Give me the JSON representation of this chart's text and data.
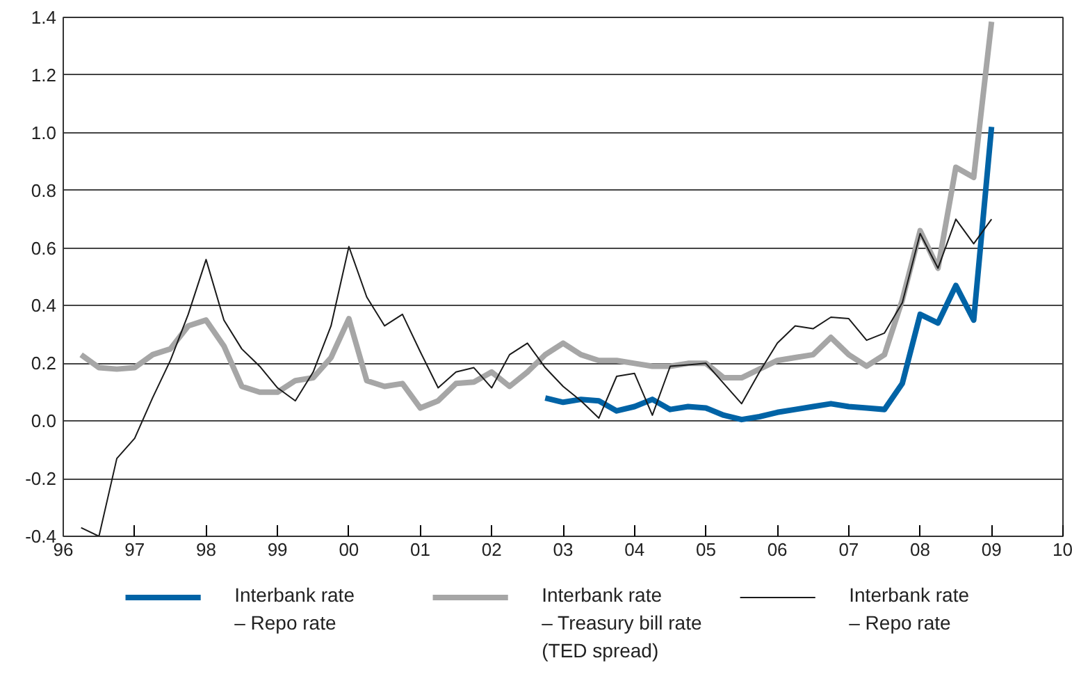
{
  "chart_data": {
    "type": "line",
    "legend": "bottom",
    "grid": "y",
    "line_style": "solid",
    "xlim": [
      1996,
      2010
    ],
    "xticks": [
      {
        "value": 1996,
        "label": "96"
      },
      {
        "value": 1997,
        "label": "97"
      },
      {
        "value": 1998,
        "label": "98"
      },
      {
        "value": 1999,
        "label": "99"
      },
      {
        "value": 2000,
        "label": "00"
      },
      {
        "value": 2001,
        "label": "01"
      },
      {
        "value": 2002,
        "label": "02"
      },
      {
        "value": 2003,
        "label": "03"
      },
      {
        "value": 2004,
        "label": "04"
      },
      {
        "value": 2005,
        "label": "05"
      },
      {
        "value": 2006,
        "label": "06"
      },
      {
        "value": 2007,
        "label": "07"
      },
      {
        "value": 2008,
        "label": "08"
      },
      {
        "value": 2009,
        "label": "09"
      },
      {
        "value": 2010,
        "label": "10"
      }
    ],
    "ylim": [
      -0.4,
      1.4
    ],
    "yticks": [
      {
        "value": -0.4,
        "label": "-0.4"
      },
      {
        "value": -0.2,
        "label": "-0.2"
      },
      {
        "value": 0,
        "label": "0.0"
      },
      {
        "value": 0.2,
        "label": "0.2"
      },
      {
        "value": 0.4,
        "label": "0.4"
      },
      {
        "value": 0.6,
        "label": "0.6"
      },
      {
        "value": 0.8,
        "label": "0.8"
      },
      {
        "value": 1,
        "label": "1.0"
      },
      {
        "value": 1.2,
        "label": "1.2"
      },
      {
        "value": 1.4,
        "label": "1.4"
      }
    ],
    "series": [
      {
        "name": "Interbank rate\n– Repo rate",
        "color": "#0063a6",
        "x": [
          2002.75,
          2003,
          2003.25,
          2003.5,
          2003.75,
          2004,
          2004.25,
          2004.5,
          2004.75,
          2005,
          2005.25,
          2005.5,
          2005.75,
          2006,
          2006.25,
          2006.5,
          2006.75,
          2007,
          2007.25,
          2007.5,
          2007.75,
          2008,
          2008.25,
          2008.5,
          2008.75,
          2009
        ],
        "values": [
          0.08,
          0.065,
          0.075,
          0.07,
          0.035,
          0.05,
          0.075,
          0.04,
          0.05,
          0.045,
          0.02,
          0.005,
          0.015,
          0.03,
          0.04,
          0.05,
          0.06,
          0.05,
          0.045,
          0.04,
          0.13,
          0.37,
          0.34,
          0.47,
          0.35,
          1.02
        ]
      },
      {
        "name": "Interbank rate\n– Treasury bill rate\n(TED spread)",
        "color": "#a6a6a6",
        "x": [
          1996.25,
          1996.5,
          1996.75,
          1997,
          1997.25,
          1997.5,
          1997.75,
          1998,
          1998.25,
          1998.5,
          1998.75,
          1999,
          1999.25,
          1999.5,
          1999.75,
          2000,
          2000.25,
          2000.5,
          2000.75,
          2001,
          2001.25,
          2001.5,
          2001.75,
          2002,
          2002.25,
          2002.5,
          2002.75,
          2003,
          2003.25,
          2003.5,
          2003.75,
          2004,
          2004.25,
          2004.5,
          2004.75,
          2005,
          2005.25,
          2005.5,
          2005.75,
          2006,
          2006.25,
          2006.5,
          2006.75,
          2007,
          2007.25,
          2007.5,
          2007.75,
          2008,
          2008.25,
          2008.5,
          2008.75,
          2009
        ],
        "values": [
          0.23,
          0.185,
          0.18,
          0.185,
          0.23,
          0.25,
          0.33,
          0.35,
          0.26,
          0.12,
          0.1,
          0.1,
          0.14,
          0.15,
          0.22,
          0.355,
          0.14,
          0.12,
          0.13,
          0.045,
          0.07,
          0.13,
          0.135,
          0.17,
          0.12,
          0.17,
          0.23,
          0.27,
          0.23,
          0.21,
          0.21,
          0.2,
          0.19,
          0.19,
          0.2,
          0.2,
          0.15,
          0.15,
          0.18,
          0.21,
          0.22,
          0.23,
          0.29,
          0.23,
          0.19,
          0.23,
          0.42,
          0.66,
          0.53,
          0.88,
          0.845,
          1.385
        ]
      },
      {
        "name": "Interbank rate\n– Repo rate",
        "color": "#1a1a1a",
        "x": [
          1996.25,
          1996.5,
          1996.75,
          1997,
          1997.25,
          1997.5,
          1997.75,
          1998,
          1998.25,
          1998.5,
          1998.75,
          1999,
          1999.25,
          1999.5,
          1999.75,
          2000,
          2000.25,
          2000.5,
          2000.75,
          2001,
          2001.25,
          2001.5,
          2001.75,
          2002,
          2002.25,
          2002.5,
          2002.75,
          2003,
          2003.25,
          2003.5,
          2003.75,
          2004,
          2004.25,
          2004.5,
          2004.75,
          2005,
          2005.25,
          2005.5,
          2005.75,
          2006,
          2006.25,
          2006.5,
          2006.75,
          2007,
          2007.25,
          2007.5,
          2007.75,
          2008,
          2008.25,
          2008.5,
          2008.75,
          2009
        ],
        "values": [
          -0.37,
          -0.4,
          -0.13,
          -0.06,
          0.08,
          0.21,
          0.37,
          0.56,
          0.35,
          0.25,
          0.19,
          0.115,
          0.07,
          0.17,
          0.33,
          0.605,
          0.43,
          0.33,
          0.37,
          0.24,
          0.115,
          0.17,
          0.185,
          0.115,
          0.23,
          0.27,
          0.185,
          0.12,
          0.07,
          0.01,
          0.155,
          0.165,
          0.02,
          0.19,
          0.195,
          0.2,
          0.13,
          0.06,
          0.17,
          0.27,
          0.33,
          0.32,
          0.36,
          0.355,
          0.28,
          0.305,
          0.41,
          0.65,
          0.53,
          0.7,
          0.615,
          0.7
        ]
      }
    ]
  }
}
